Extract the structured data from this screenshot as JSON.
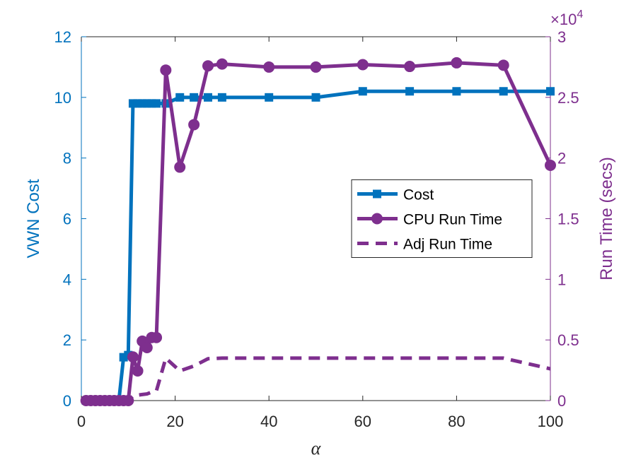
{
  "chart_data": {
    "type": "line",
    "xlabel": "α",
    "ylabel": "VWN Cost",
    "y2label": "Run Time (secs)",
    "y2_multiplier": {
      "base": "×10",
      "exponent": "4"
    },
    "xlim": [
      0,
      100
    ],
    "xticks": [
      0,
      20,
      40,
      60,
      80,
      100
    ],
    "ylim": [
      0,
      12
    ],
    "yticks": [
      0,
      2,
      4,
      6,
      8,
      10,
      12
    ],
    "y2lim": [
      0,
      30000
    ],
    "y2ticks": [
      0,
      {
        "value": 5000,
        "label": "0.5"
      },
      {
        "value": 10000,
        "label": "1"
      },
      {
        "value": 15000,
        "label": "1.5"
      },
      {
        "value": 20000,
        "label": "2"
      },
      {
        "value": 25000,
        "label": "2.5"
      },
      {
        "value": 30000,
        "label": "3"
      }
    ],
    "left_axis_color": "#0072bd",
    "right_axis_color": "#7e2f8e",
    "grid": false,
    "legend_position": "east",
    "series": [
      {
        "name": "Cost",
        "color": "#0072bd",
        "marker": "square",
        "dash": false,
        "x": [
          1,
          2,
          3,
          4,
          5,
          6,
          7,
          8,
          9,
          10,
          11,
          12,
          13,
          14,
          15,
          16,
          18,
          21,
          24,
          27,
          30,
          40,
          50,
          60,
          70,
          80,
          90,
          100
        ],
        "values": [
          0,
          0,
          0,
          0,
          0,
          0,
          0,
          0,
          1.43,
          1.5,
          9.8,
          9.8,
          9.8,
          9.8,
          9.8,
          9.8,
          9.8,
          10,
          10,
          10,
          10,
          10,
          10,
          10.2,
          10.2,
          10.2,
          10.2,
          10.2
        ]
      },
      {
        "name": "CPU Run Time",
        "color": "#7e2f8e",
        "marker": "circle",
        "dash": false,
        "axis": "y2",
        "x": [
          1,
          2,
          3,
          4,
          5,
          6,
          7,
          8,
          9,
          10,
          11,
          12,
          13,
          14,
          15,
          16,
          18,
          21,
          24,
          27,
          30,
          40,
          50,
          60,
          70,
          80,
          90,
          100
        ],
        "values": [
          0,
          0,
          0,
          0,
          0,
          0,
          0,
          0,
          0,
          0,
          3600,
          2450,
          4900,
          4370,
          5200,
          5200,
          27250,
          19250,
          22750,
          27600,
          27750,
          27500,
          27500,
          27700,
          27550,
          27850,
          27650,
          19400
        ]
      },
      {
        "name": "Adj Run Time",
        "color": "#7e2f8e",
        "marker": "none",
        "dash": true,
        "axis": "y2",
        "x": [
          1,
          2,
          3,
          4,
          5,
          6,
          7,
          8,
          9,
          10,
          11,
          12,
          13,
          14,
          15,
          16,
          18,
          21,
          24,
          27,
          30,
          40,
          50,
          60,
          70,
          80,
          90,
          100
        ],
        "values": [
          0,
          0,
          0,
          0,
          0,
          0,
          0,
          0,
          0,
          0,
          400,
          450,
          500,
          550,
          700,
          800,
          3500,
          2450,
          2850,
          3450,
          3500,
          3500,
          3500,
          3500,
          3500,
          3500,
          3500,
          2620
        ]
      }
    ]
  }
}
